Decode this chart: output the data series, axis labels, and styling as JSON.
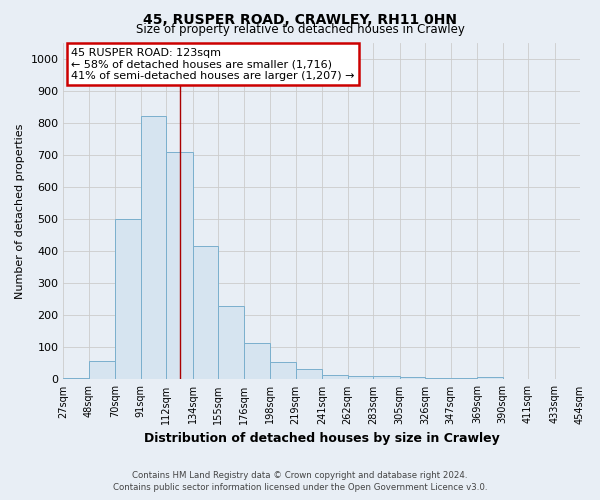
{
  "title": "45, RUSPER ROAD, CRAWLEY, RH11 0HN",
  "subtitle": "Size of property relative to detached houses in Crawley",
  "xlabel": "Distribution of detached houses by size in Crawley",
  "ylabel": "Number of detached properties",
  "footer_line1": "Contains HM Land Registry data © Crown copyright and database right 2024.",
  "footer_line2": "Contains public sector information licensed under the Open Government Licence v3.0.",
  "bin_edges": [
    27,
    48,
    70,
    91,
    112,
    134,
    155,
    176,
    198,
    219,
    241,
    262,
    283,
    305,
    326,
    347,
    369,
    390,
    411,
    433,
    454
  ],
  "bar_heights": [
    5,
    57,
    500,
    820,
    710,
    415,
    230,
    115,
    55,
    32,
    15,
    10,
    12,
    7,
    5,
    5,
    8,
    0,
    0,
    0
  ],
  "bar_color": "#d6e4f0",
  "bar_edge_color": "#7aafcd",
  "property_sqm": 123,
  "property_line_color": "#aa0000",
  "annotation_text_line1": "45 RUSPER ROAD: 123sqm",
  "annotation_text_line2": "← 58% of detached houses are smaller (1,716)",
  "annotation_text_line3": "41% of semi-detached houses are larger (1,207) →",
  "annotation_box_facecolor": "#ffffff",
  "annotation_box_edgecolor": "#cc0000",
  "ylim": [
    0,
    1050
  ],
  "yticks": [
    0,
    100,
    200,
    300,
    400,
    500,
    600,
    700,
    800,
    900,
    1000
  ],
  "grid_color": "#cccccc",
  "bg_color": "#e8eef5"
}
